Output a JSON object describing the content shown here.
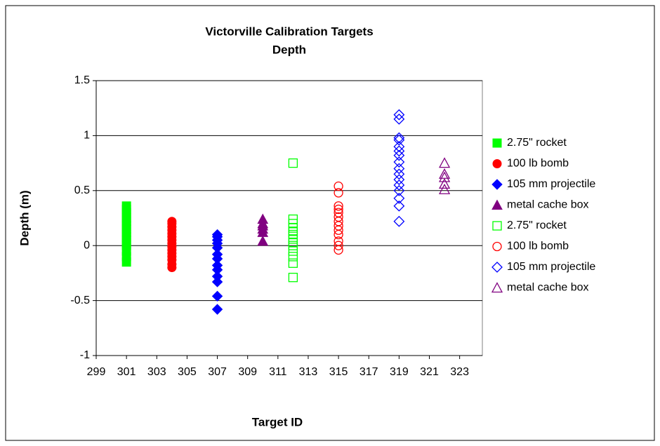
{
  "chart_data": {
    "type": "scatter",
    "title": "Victorville Calibration Targets",
    "subtitle": "Depth",
    "x_label": "Target ID",
    "y_label": "Depth (m)",
    "xlim": [
      299,
      324.5
    ],
    "xticks": [
      299,
      301,
      303,
      305,
      307,
      309,
      311,
      313,
      315,
      317,
      319,
      321,
      323
    ],
    "ylim": [
      -1,
      1.5
    ],
    "yticks": [
      -1,
      -0.5,
      0,
      0.5,
      1,
      1.5
    ],
    "grid": true,
    "legend": "right",
    "series": [
      {
        "name": "2.75\" rocket",
        "color": "#00ff00",
        "marker": "square",
        "filled": true,
        "x": [
          301,
          301,
          301,
          301,
          301,
          301,
          301,
          301,
          301,
          301,
          301,
          301,
          301,
          301,
          301,
          301,
          301,
          301
        ],
        "values": [
          -0.15,
          -0.1,
          -0.05,
          0,
          0.02,
          0.05,
          0.08,
          0.1,
          0.12,
          0.15,
          0.18,
          0.2,
          0.22,
          0.25,
          0.28,
          0.3,
          0.33,
          0.36
        ]
      },
      {
        "name": "100 lb bomb",
        "color": "#ff0000",
        "marker": "circle",
        "filled": true,
        "x": [
          304,
          304,
          304,
          304,
          304,
          304,
          304,
          304,
          304,
          304,
          304,
          304,
          304,
          304,
          304
        ],
        "values": [
          -0.2,
          -0.17,
          -0.13,
          -0.1,
          -0.07,
          -0.04,
          -0.01,
          0.02,
          0.05,
          0.08,
          0.11,
          0.14,
          0.17,
          0.2,
          0.22
        ]
      },
      {
        "name": "105 mm projectile",
        "color": "#0000ff",
        "marker": "diamond",
        "filled": true,
        "x": [
          307,
          307,
          307,
          307,
          307,
          307,
          307,
          307,
          307,
          307,
          307,
          307,
          307
        ],
        "values": [
          -0.58,
          -0.46,
          -0.33,
          -0.28,
          -0.22,
          -0.18,
          -0.12,
          -0.08,
          -0.02,
          0.02,
          0.05,
          0.08,
          0.1
        ]
      },
      {
        "name": "metal cache box",
        "color": "#800080",
        "marker": "triangle",
        "filled": true,
        "x": [
          310,
          310,
          310,
          310,
          310,
          310
        ],
        "values": [
          0.04,
          0.12,
          0.15,
          0.18,
          0.2,
          0.24
        ]
      },
      {
        "name": "2.75\" rocket",
        "color": "#00ff00",
        "marker": "square",
        "filled": false,
        "x": [
          312,
          312,
          312,
          312,
          312,
          312,
          312,
          312,
          312,
          312,
          312,
          312,
          312
        ],
        "values": [
          -0.29,
          -0.16,
          -0.1,
          -0.05,
          0,
          0.03,
          0.06,
          0.1,
          0.13,
          0.16,
          0.2,
          0.24,
          0.75
        ]
      },
      {
        "name": "100 lb bomb",
        "color": "#ff0000",
        "marker": "circle",
        "filled": false,
        "x": [
          315,
          315,
          315,
          315,
          315,
          315,
          315,
          315,
          315,
          315,
          315,
          315,
          315
        ],
        "values": [
          -0.04,
          0,
          0.04,
          0.1,
          0.14,
          0.18,
          0.22,
          0.26,
          0.3,
          0.33,
          0.36,
          0.48,
          0.54
        ]
      },
      {
        "name": "105 mm projectile",
        "color": "#0000ff",
        "marker": "diamond",
        "filled": false,
        "x": [
          319,
          319,
          319,
          319,
          319,
          319,
          319,
          319,
          319,
          319,
          319,
          319,
          319,
          319,
          319,
          319
        ],
        "values": [
          0.22,
          0.36,
          0.43,
          0.5,
          0.55,
          0.6,
          0.65,
          0.7,
          0.76,
          0.82,
          0.86,
          0.9,
          0.96,
          0.98,
          1.15,
          1.19
        ]
      },
      {
        "name": "metal cache box",
        "color": "#800080",
        "marker": "triangle",
        "filled": false,
        "x": [
          322,
          322,
          322,
          322,
          322
        ],
        "values": [
          0.51,
          0.56,
          0.62,
          0.65,
          0.75
        ]
      }
    ]
  }
}
